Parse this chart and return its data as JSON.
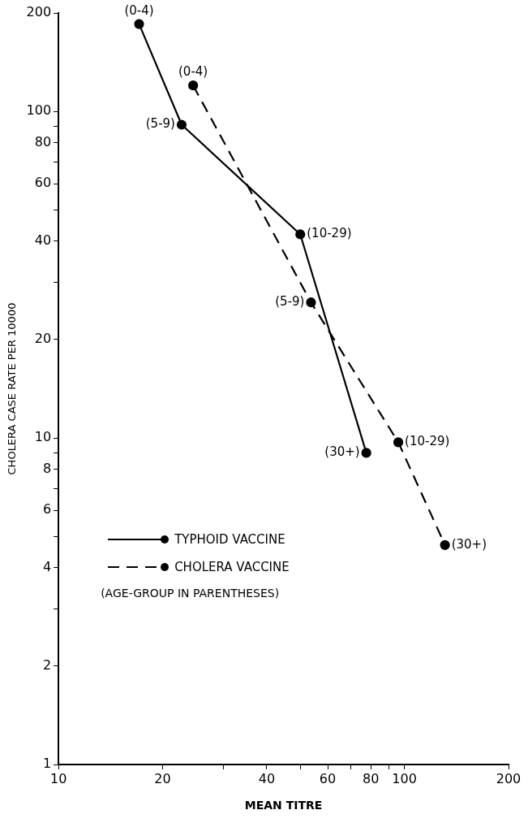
{
  "chart_data": {
    "type": "line",
    "xlabel": "MEAN TITRE",
    "ylabel": "CHOLERA CASE RATE PER 10000",
    "log": "xy",
    "grid": false,
    "legend": "bottom left",
    "marker": "circle",
    "xlim": [
      10,
      200
    ],
    "xticks": [
      10,
      20,
      {
        "value": 30,
        "label": null
      },
      40,
      {
        "value": 50,
        "label": null
      },
      60,
      {
        "value": 70,
        "label": null
      },
      80,
      {
        "value": 90,
        "label": null
      },
      100,
      200
    ],
    "ylim": [
      1,
      200
    ],
    "yticks": [
      1,
      2,
      {
        "value": 3,
        "label": null
      },
      4,
      {
        "value": 5,
        "label": null
      },
      6,
      {
        "value": 7,
        "label": null
      },
      8,
      {
        "value": 9,
        "label": null
      },
      10,
      20,
      {
        "value": 30,
        "label": null
      },
      40,
      {
        "value": 50,
        "label": null
      },
      60,
      {
        "value": 70,
        "label": null
      },
      80,
      {
        "value": 90,
        "label": null
      },
      100,
      200
    ],
    "series": [
      {
        "name": "TYPHOID VACCINE",
        "color": "#000000",
        "line_style": "solid",
        "x": [
          17.1,
          22.7,
          50,
          77.6
        ],
        "values": [
          185,
          91,
          42,
          9
        ]
      },
      {
        "name": "CHOLERA VACCINE",
        "color": "#000000",
        "line_style": "dashed",
        "x": [
          24.5,
          53.7,
          96,
          131
        ],
        "values": [
          120,
          26,
          9.7,
          4.7
        ]
      }
    ],
    "annotations": [
      {
        "text": "(0-4)",
        "x": 17.1,
        "y": 185
      },
      {
        "text": "(5-9)",
        "x": 22.7,
        "y": 91
      },
      {
        "text": "(10-29)",
        "x": 50,
        "y": 42
      },
      {
        "text": "(30+)",
        "x": 77.6,
        "y": 9
      },
      {
        "text": "(0-4)",
        "x": 24.5,
        "y": 120
      },
      {
        "text": "(5-9)",
        "x": 53.7,
        "y": 26
      },
      {
        "text": "(10-29)",
        "x": 96,
        "y": 9.7
      },
      {
        "text": "(30+)",
        "x": 131,
        "y": 4.7
      },
      "(AGE-GROUP IN PARENTHESES)"
    ]
  }
}
